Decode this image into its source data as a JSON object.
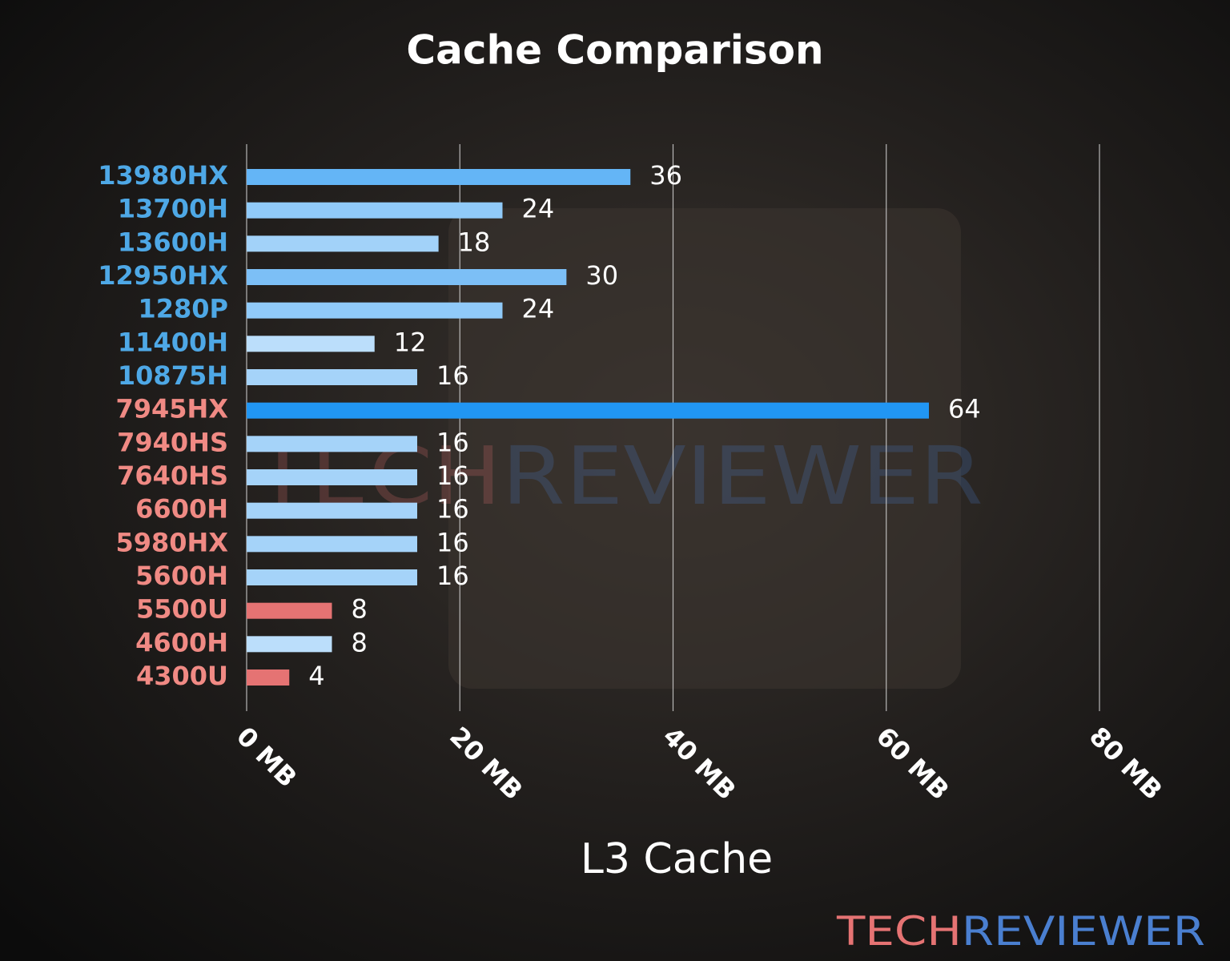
{
  "chart_data": {
    "type": "bar",
    "orientation": "horizontal",
    "title": "Cache Comparison",
    "x_label": "L3 Cache",
    "categories": [
      "13980HX",
      "13700H",
      "13600H",
      "12950HX",
      "1280P",
      "11400H",
      "10875H",
      "7945HX",
      "7940HS",
      "7640HS",
      "6600H",
      "5980HX",
      "5600H",
      "5500U",
      "4600H",
      "4300U"
    ],
    "values": [
      36,
      24,
      18,
      30,
      24,
      12,
      16,
      64,
      16,
      16,
      16,
      16,
      16,
      8,
      8,
      4
    ],
    "colors": [
      "#64b5f6",
      "#90caf9",
      "#a2d2f9",
      "#7cbff6",
      "#90caf9",
      "#bbdefb",
      "#a5d3f9",
      "#2196f3",
      "#a5d3f9",
      "#a5d3f9",
      "#a5d3f9",
      "#a5d3f9",
      "#a5d3f9",
      "#e57373",
      "#bbdefb",
      "#e57373"
    ],
    "label_colors": [
      "#4ea8e6",
      "#4ea8e6",
      "#4ea8e6",
      "#4ea8e6",
      "#4ea8e6",
      "#4ea8e6",
      "#4ea8e6",
      "#f08a84",
      "#f08a84",
      "#f08a84",
      "#f08a84",
      "#f08a84",
      "#f08a84",
      "#f08a84",
      "#f08a84",
      "#f08a84"
    ],
    "xlim": [
      0,
      80
    ],
    "xticks": [
      {
        "value": 0,
        "label": "0 MB"
      },
      {
        "value": 20,
        "label": "20 MB"
      },
      {
        "value": 40,
        "label": "40 MB"
      },
      {
        "value": 60,
        "label": "60 MB"
      },
      {
        "value": 80,
        "label": "80 MB"
      }
    ],
    "grid": true
  },
  "watermark": {
    "parts": [
      "TECH",
      "REVIEWER"
    ],
    "colors": [
      "#e57373",
      "#4a7fd0"
    ]
  }
}
